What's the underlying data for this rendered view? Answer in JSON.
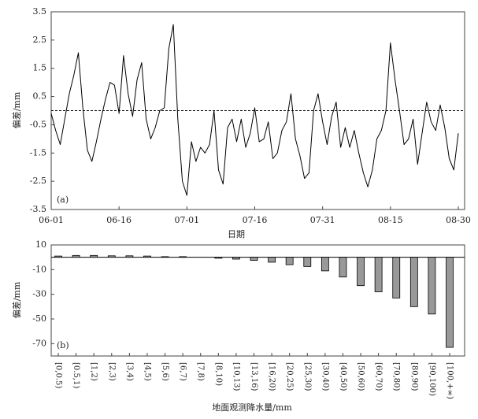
{
  "chart_data": [
    {
      "type": "line",
      "annotation": "(a)",
      "ylabel": "偏差/mm",
      "xlabel": "日期",
      "x": [
        "06-01",
        "06-02",
        "06-03",
        "06-04",
        "06-05",
        "06-06",
        "06-07",
        "06-08",
        "06-09",
        "06-10",
        "06-11",
        "06-12",
        "06-13",
        "06-14",
        "06-15",
        "06-16",
        "06-17",
        "06-18",
        "06-19",
        "06-20",
        "06-21",
        "06-22",
        "06-23",
        "06-24",
        "06-25",
        "06-26",
        "06-27",
        "06-28",
        "06-29",
        "06-30",
        "07-01",
        "07-02",
        "07-03",
        "07-04",
        "07-05",
        "07-06",
        "07-07",
        "07-08",
        "07-09",
        "07-10",
        "07-11",
        "07-12",
        "07-13",
        "07-14",
        "07-15",
        "07-16",
        "07-17",
        "07-18",
        "07-19",
        "07-20",
        "07-21",
        "07-22",
        "07-23",
        "07-24",
        "07-25",
        "07-26",
        "07-27",
        "07-28",
        "07-29",
        "07-30",
        "07-31",
        "08-01",
        "08-02",
        "08-03",
        "08-04",
        "08-05",
        "08-06",
        "08-07",
        "08-08",
        "08-09",
        "08-10",
        "08-11",
        "08-12",
        "08-13",
        "08-14",
        "08-15",
        "08-16",
        "08-17",
        "08-18",
        "08-19",
        "08-20",
        "08-21",
        "08-22",
        "08-23",
        "08-24",
        "08-25",
        "08-26",
        "08-27",
        "08-28",
        "08-29",
        "08-30"
      ],
      "xticks": [
        "06-01",
        "06-16",
        "07-01",
        "07-16",
        "07-31",
        "08-15",
        "08-30"
      ],
      "series": [
        {
          "color": "#000000",
          "values": [
            -0.1,
            -0.7,
            -1.2,
            -0.3,
            0.6,
            1.25,
            2.05,
            0.1,
            -1.4,
            -1.8,
            -1.1,
            -0.3,
            0.4,
            1.0,
            0.9,
            -0.1,
            1.95,
            0.6,
            -0.2,
            1.1,
            1.7,
            -0.3,
            -1.0,
            -0.6,
            0.0,
            0.1,
            2.2,
            3.05,
            -0.3,
            -2.5,
            -3.0,
            -1.1,
            -1.8,
            -1.3,
            -1.5,
            -1.2,
            0.0,
            -2.1,
            -2.6,
            -0.6,
            -0.3,
            -1.1,
            -0.3,
            -1.3,
            -0.8,
            0.1,
            -1.1,
            -1.0,
            -0.4,
            -1.7,
            -1.5,
            -0.7,
            -0.4,
            0.6,
            -1.0,
            -1.6,
            -2.4,
            -2.2,
            0.0,
            0.6,
            -0.4,
            -1.2,
            -0.2,
            0.3,
            -1.3,
            -0.6,
            -1.3,
            -0.7,
            -1.5,
            -2.2,
            -2.7,
            -2.1,
            -1.0,
            -0.7,
            0.0,
            2.4,
            1.1,
            0.0,
            -1.2,
            -1.0,
            -0.3,
            -1.9,
            -0.8,
            0.3,
            -0.4,
            -0.7,
            0.2,
            -0.6,
            -1.7,
            -2.1,
            -0.8
          ]
        }
      ],
      "hline": 0,
      "ylim": [
        -3.5,
        3.5
      ],
      "yticks": [
        -3.5,
        -2.5,
        -1.5,
        -0.5,
        0.5,
        1.5,
        2.5,
        3.5
      ]
    },
    {
      "type": "bar",
      "annotation": "(b)",
      "ylabel": "偏差/mm",
      "xlabel": "地面观测降水量/mm",
      "categories": [
        "[0,0.5)",
        "[0.5,1)",
        "[1,2)",
        "[2,3)",
        "[3,4)",
        "[4,5)",
        "[5,6)",
        "[6,7)",
        "[7,8)",
        "[8,10)",
        "[10,13)",
        "[13,16)",
        "[16,20)",
        "[20,25)",
        "[25,30)",
        "[30,40)",
        "[40,50)",
        "[50,60)",
        "[60,70)",
        "[70,80)",
        "[80,90)",
        "[90,100)",
        "[100,+∞)"
      ],
      "values": [
        1.0,
        1.5,
        1.5,
        1.2,
        1.2,
        1.0,
        0.5,
        0.5,
        0,
        -0.8,
        -1.5,
        -2.5,
        -4.0,
        -6.0,
        -7.5,
        -11,
        -16,
        -23,
        -28,
        -33,
        -40,
        -46,
        -73
      ],
      "color": "#999999",
      "ylim": [
        -80,
        10
      ],
      "yticks": [
        -70,
        -50,
        -30,
        -10,
        10
      ]
    }
  ]
}
